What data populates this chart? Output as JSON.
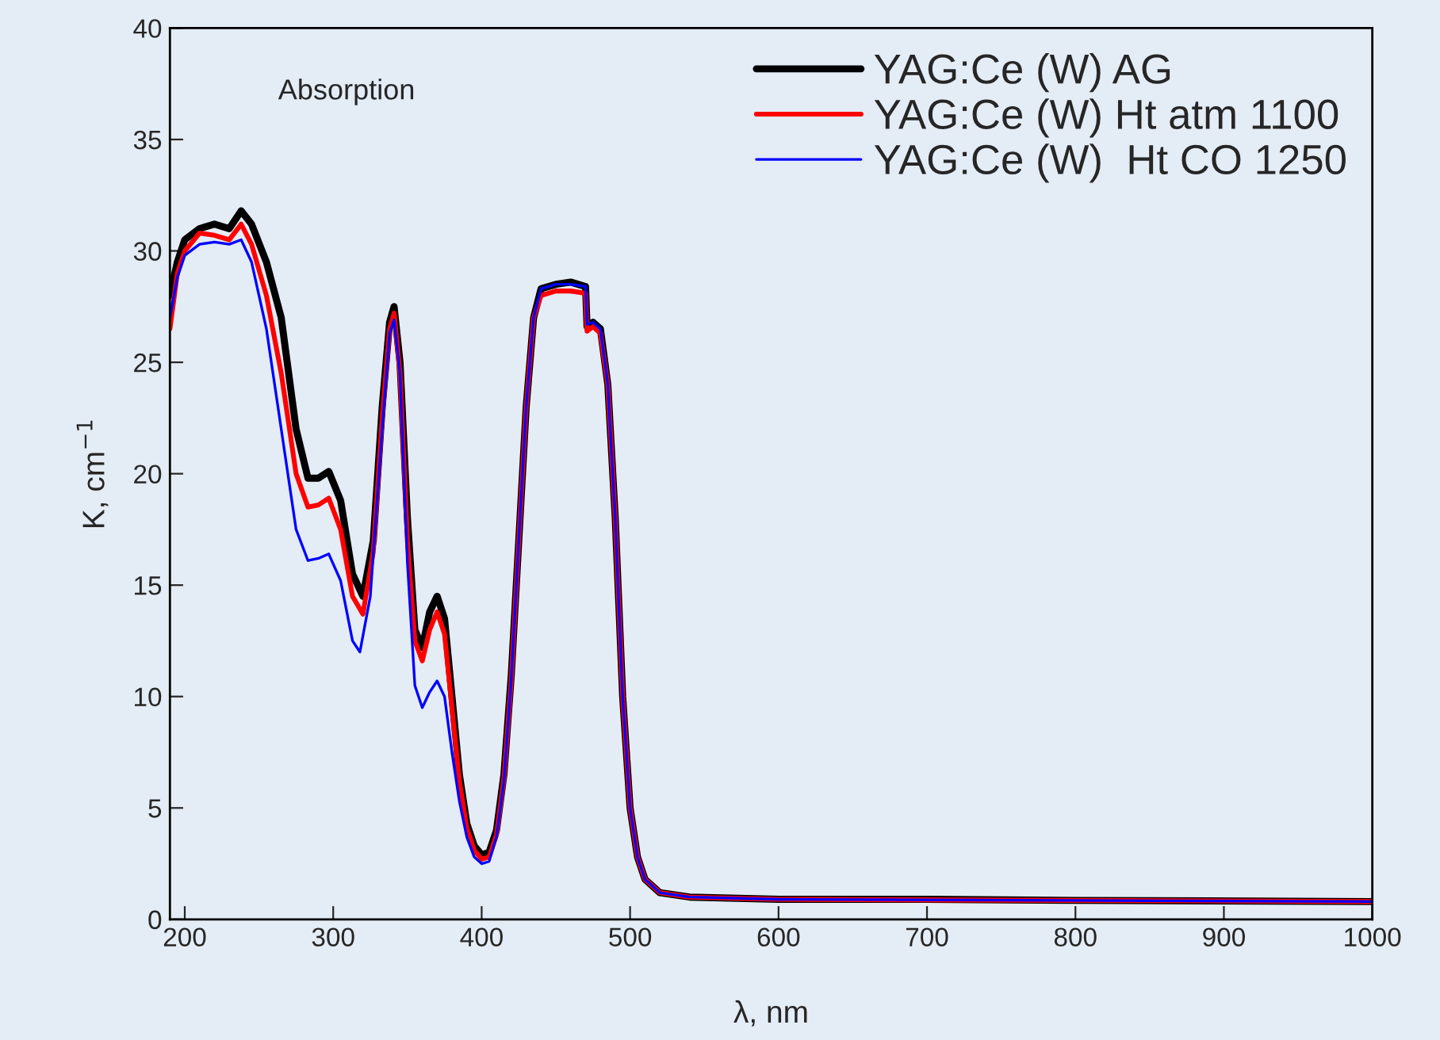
{
  "chart_data": {
    "type": "line",
    "xlabel": "λ, nm",
    "ylabel": "K, cm$^{−1}$",
    "annotations": [
      "Absorption"
    ],
    "xlim": [
      190,
      1000
    ],
    "xticks": [
      200,
      300,
      400,
      500,
      600,
      700,
      800,
      900,
      1000
    ],
    "ylim": [
      0,
      40
    ],
    "yticks": [
      0,
      5,
      10,
      15,
      20,
      25,
      30,
      35,
      40
    ],
    "grid": false,
    "legend": "top right",
    "marker": "none",
    "line_style": "solid",
    "series": [
      {
        "name": "YAG:Ce (W) AG",
        "color": "#000000",
        "x": [
          190,
          195,
          200,
          210,
          220,
          230,
          238,
          245,
          255,
          265,
          275,
          283,
          290,
          297,
          305,
          313,
          320,
          327,
          333,
          338,
          341,
          345,
          350,
          355,
          360,
          365,
          370,
          375,
          380,
          385,
          390,
          395,
          400,
          405,
          410,
          415,
          420,
          425,
          430,
          435,
          440,
          450,
          460,
          470,
          471,
          475,
          480,
          485,
          490,
          495,
          500,
          505,
          510,
          520,
          540,
          600,
          700,
          800,
          1000
        ],
        "values": [
          28.0,
          29.5,
          30.5,
          31.0,
          31.2,
          31.0,
          31.8,
          31.2,
          29.5,
          27,
          22,
          19.8,
          19.8,
          20.1,
          18.8,
          15.5,
          14.5,
          17,
          23,
          26.8,
          27.5,
          25,
          18,
          13,
          12.2,
          13.8,
          14.5,
          13.5,
          10,
          6.5,
          4.3,
          3.3,
          2.9,
          3.0,
          4.0,
          6.5,
          11,
          17,
          23,
          27,
          28.3,
          28.5,
          28.6,
          28.4,
          26.6,
          26.8,
          26.5,
          24,
          18,
          10,
          5.0,
          2.8,
          1.8,
          1.2,
          1.0,
          0.9,
          0.9,
          0.85,
          0.8
        ]
      },
      {
        "name": "YAG:Ce (W) Ht atm 1100",
        "color": "#ff0000",
        "x": [
          190,
          195,
          200,
          210,
          220,
          230,
          238,
          245,
          255,
          265,
          275,
          283,
          290,
          297,
          305,
          313,
          320,
          327,
          333,
          338,
          341,
          345,
          350,
          355,
          360,
          365,
          370,
          375,
          380,
          385,
          390,
          395,
          400,
          405,
          410,
          415,
          420,
          425,
          430,
          435,
          440,
          450,
          460,
          470,
          471,
          475,
          480,
          485,
          490,
          495,
          500,
          505,
          510,
          520,
          540,
          600,
          1000
        ],
        "values": [
          26.5,
          29,
          30,
          30.8,
          30.7,
          30.5,
          31.2,
          30.3,
          28,
          24.5,
          20,
          18.5,
          18.6,
          18.9,
          17.5,
          14.5,
          13.7,
          16.5,
          22.5,
          26.5,
          27.2,
          24.5,
          17,
          12.5,
          11.6,
          13,
          13.8,
          12.8,
          9.5,
          6.2,
          4.1,
          3.1,
          2.7,
          2.8,
          3.8,
          6.3,
          10.8,
          17,
          23,
          27,
          28.0,
          28.2,
          28.2,
          28.1,
          26.4,
          26.6,
          26.3,
          24,
          18,
          10,
          5.0,
          2.8,
          1.8,
          1.2,
          1.0,
          0.9,
          0.8
        ]
      },
      {
        "name": "YAG:Ce (W)  Ht CO 1250",
        "color": "#0000ff",
        "x": [
          190,
          195,
          200,
          210,
          220,
          230,
          238,
          245,
          255,
          265,
          275,
          283,
          290,
          297,
          305,
          313,
          318,
          325,
          333,
          338,
          341,
          345,
          350,
          355,
          360,
          365,
          370,
          375,
          380,
          385,
          390,
          395,
          400,
          405,
          410,
          415,
          420,
          425,
          430,
          435,
          440,
          450,
          460,
          470,
          471,
          475,
          480,
          485,
          490,
          495,
          500,
          505,
          510,
          520,
          540,
          600,
          1000
        ],
        "values": [
          27,
          28.8,
          29.8,
          30.3,
          30.4,
          30.3,
          30.5,
          29.5,
          26.5,
          22,
          17.5,
          16.1,
          16.2,
          16.4,
          15.2,
          12.5,
          12.0,
          14.5,
          22,
          26.3,
          26.9,
          24.5,
          16,
          10.5,
          9.5,
          10.2,
          10.7,
          10,
          7.5,
          5.3,
          3.7,
          2.8,
          2.5,
          2.6,
          3.7,
          6.2,
          10.8,
          17,
          23,
          27,
          28.3,
          28.5,
          28.5,
          28.4,
          26.7,
          26.8,
          26.5,
          24,
          18,
          10,
          5.0,
          2.8,
          1.8,
          1.2,
          1.0,
          0.9,
          0.8
        ]
      }
    ]
  }
}
